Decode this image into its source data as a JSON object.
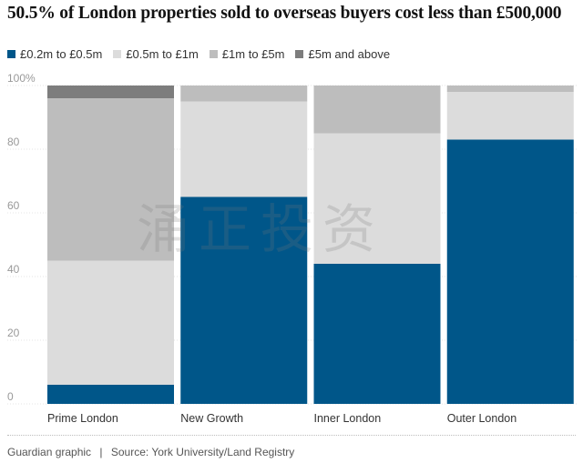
{
  "chart_data": {
    "type": "bar",
    "stacked": true,
    "title": "50.5% of London properties sold to overseas buyers cost less than £500,000",
    "categories": [
      "Prime London",
      "New Growth",
      "Inner London",
      "Outer London"
    ],
    "series": [
      {
        "name": "£0.2m to £0.5m",
        "color": "#005689",
        "values": [
          6,
          65,
          44,
          83
        ]
      },
      {
        "name": "£0.5m to £1m",
        "color": "#dcdcdc",
        "values": [
          39,
          30,
          41,
          15
        ]
      },
      {
        "name": "£1m to £5m",
        "color": "#bdbdbd",
        "values": [
          51,
          5,
          15,
          2
        ]
      },
      {
        "name": "£5m and above",
        "color": "#7d7d7d",
        "values": [
          4,
          0,
          0,
          0
        ]
      }
    ],
    "yticks": [
      "0",
      "20",
      "40",
      "60",
      "80",
      "100%"
    ],
    "ylim": [
      0,
      100
    ],
    "grid": true,
    "legend": "top-left"
  },
  "footer": {
    "credit": "Guardian graphic",
    "separator": "|",
    "source": "Source: York University/Land Registry"
  },
  "watermark": "涌正投资"
}
